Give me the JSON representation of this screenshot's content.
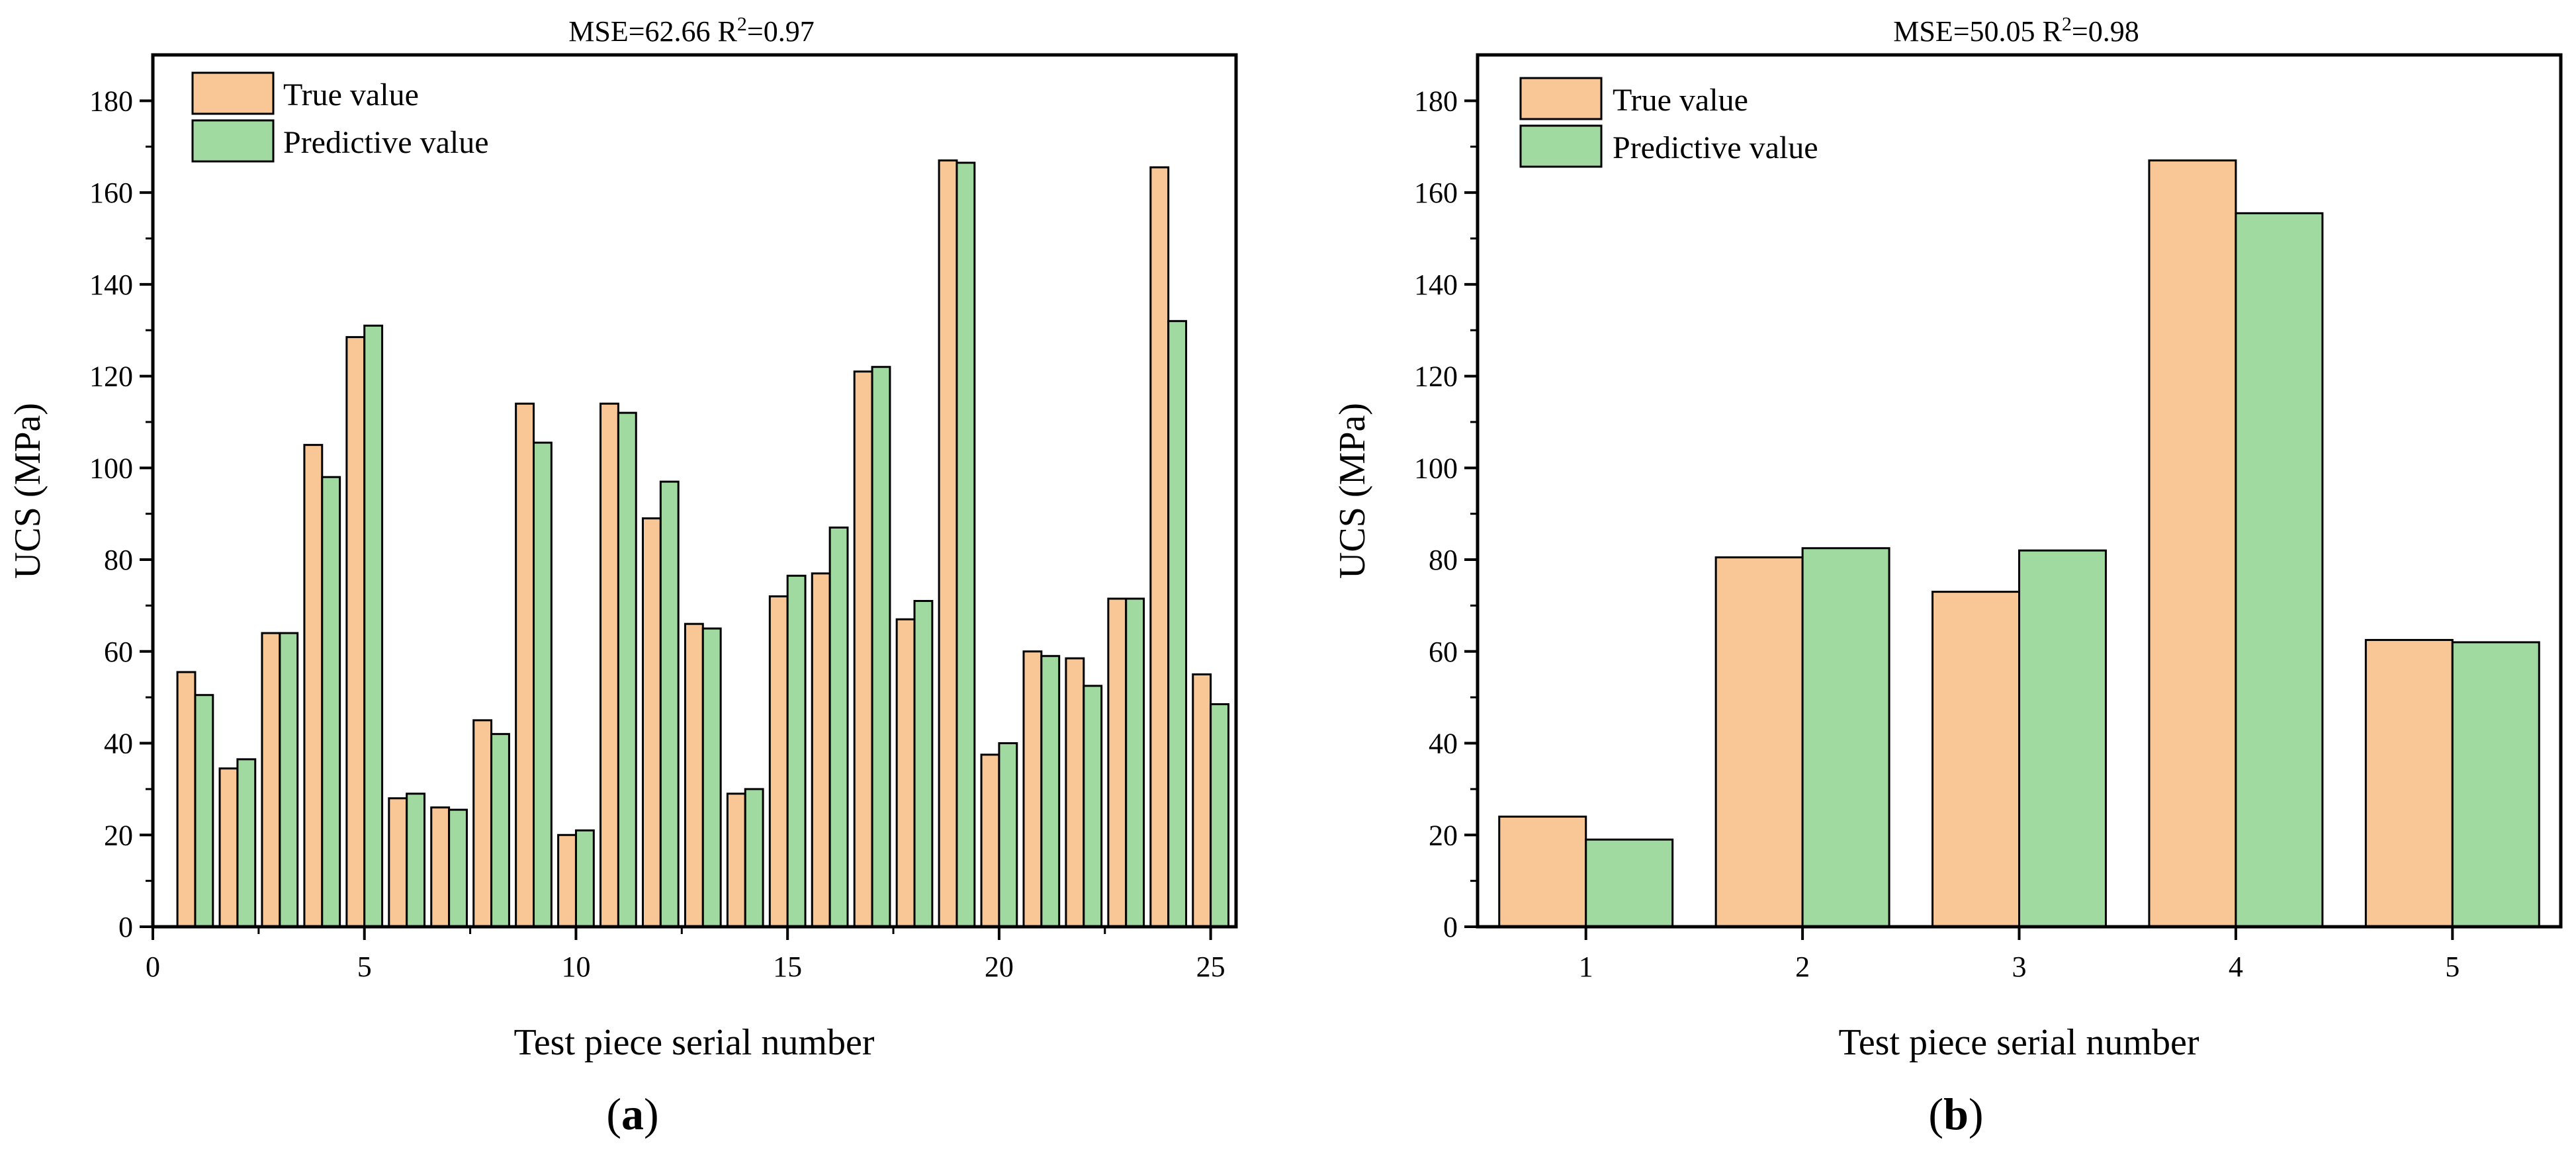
{
  "chart_data": [
    {
      "panel": "a",
      "type": "bar",
      "title": {
        "prefix": "MSE=62.66  R",
        "sup": "2",
        "suffix": "=0.97"
      },
      "xlabel": "Test piece serial number",
      "ylabel": "UCS (MPa)",
      "xlim": [
        0,
        25.6
      ],
      "ylim": [
        0,
        190
      ],
      "xticks": [
        0,
        5,
        10,
        15,
        20,
        25
      ],
      "yticks": [
        0,
        20,
        40,
        60,
        80,
        100,
        120,
        140,
        160,
        180
      ],
      "categories": [
        1,
        2,
        3,
        4,
        5,
        6,
        7,
        8,
        9,
        10,
        11,
        12,
        13,
        14,
        15,
        16,
        17,
        18,
        19,
        20,
        21,
        22,
        23,
        24,
        25
      ],
      "series": [
        {
          "name": "True value",
          "color": "#F9C796",
          "values": [
            55.5,
            34.5,
            64,
            105,
            128.5,
            28,
            26,
            45,
            114,
            20,
            114,
            89,
            66,
            29,
            72,
            77,
            121,
            67,
            167,
            37.5,
            60,
            58.5,
            71.5,
            165.5,
            55
          ]
        },
        {
          "name": "Predictive value",
          "color": "#A0DAA0",
          "values": [
            50.5,
            36.5,
            64,
            98,
            131,
            29,
            25.5,
            42,
            105.5,
            21,
            112,
            97,
            65,
            30,
            76.5,
            87,
            122,
            71,
            166.5,
            40,
            59,
            52.5,
            71.5,
            132,
            48.5
          ]
        }
      ],
      "legend": "top-left",
      "panel_label": "a"
    },
    {
      "panel": "b",
      "type": "bar",
      "title": {
        "prefix": "MSE=50.05  R",
        "sup": "2",
        "suffix": "=0.98"
      },
      "xlabel": "Test piece serial number",
      "ylabel": "UCS (MPa)",
      "ylim": [
        0,
        190
      ],
      "yticks": [
        0,
        20,
        40,
        60,
        80,
        100,
        120,
        140,
        160,
        180
      ],
      "categories": [
        "1",
        "2",
        "3",
        "4",
        "5"
      ],
      "series": [
        {
          "name": "True value",
          "color": "#F9C796",
          "values": [
            24,
            80.5,
            73,
            167,
            62.5
          ]
        },
        {
          "name": "Predictive value",
          "color": "#A0DAA0",
          "values": [
            19,
            82.5,
            82,
            155.5,
            62
          ]
        }
      ],
      "legend": "top-left",
      "panel_label": "b"
    }
  ]
}
